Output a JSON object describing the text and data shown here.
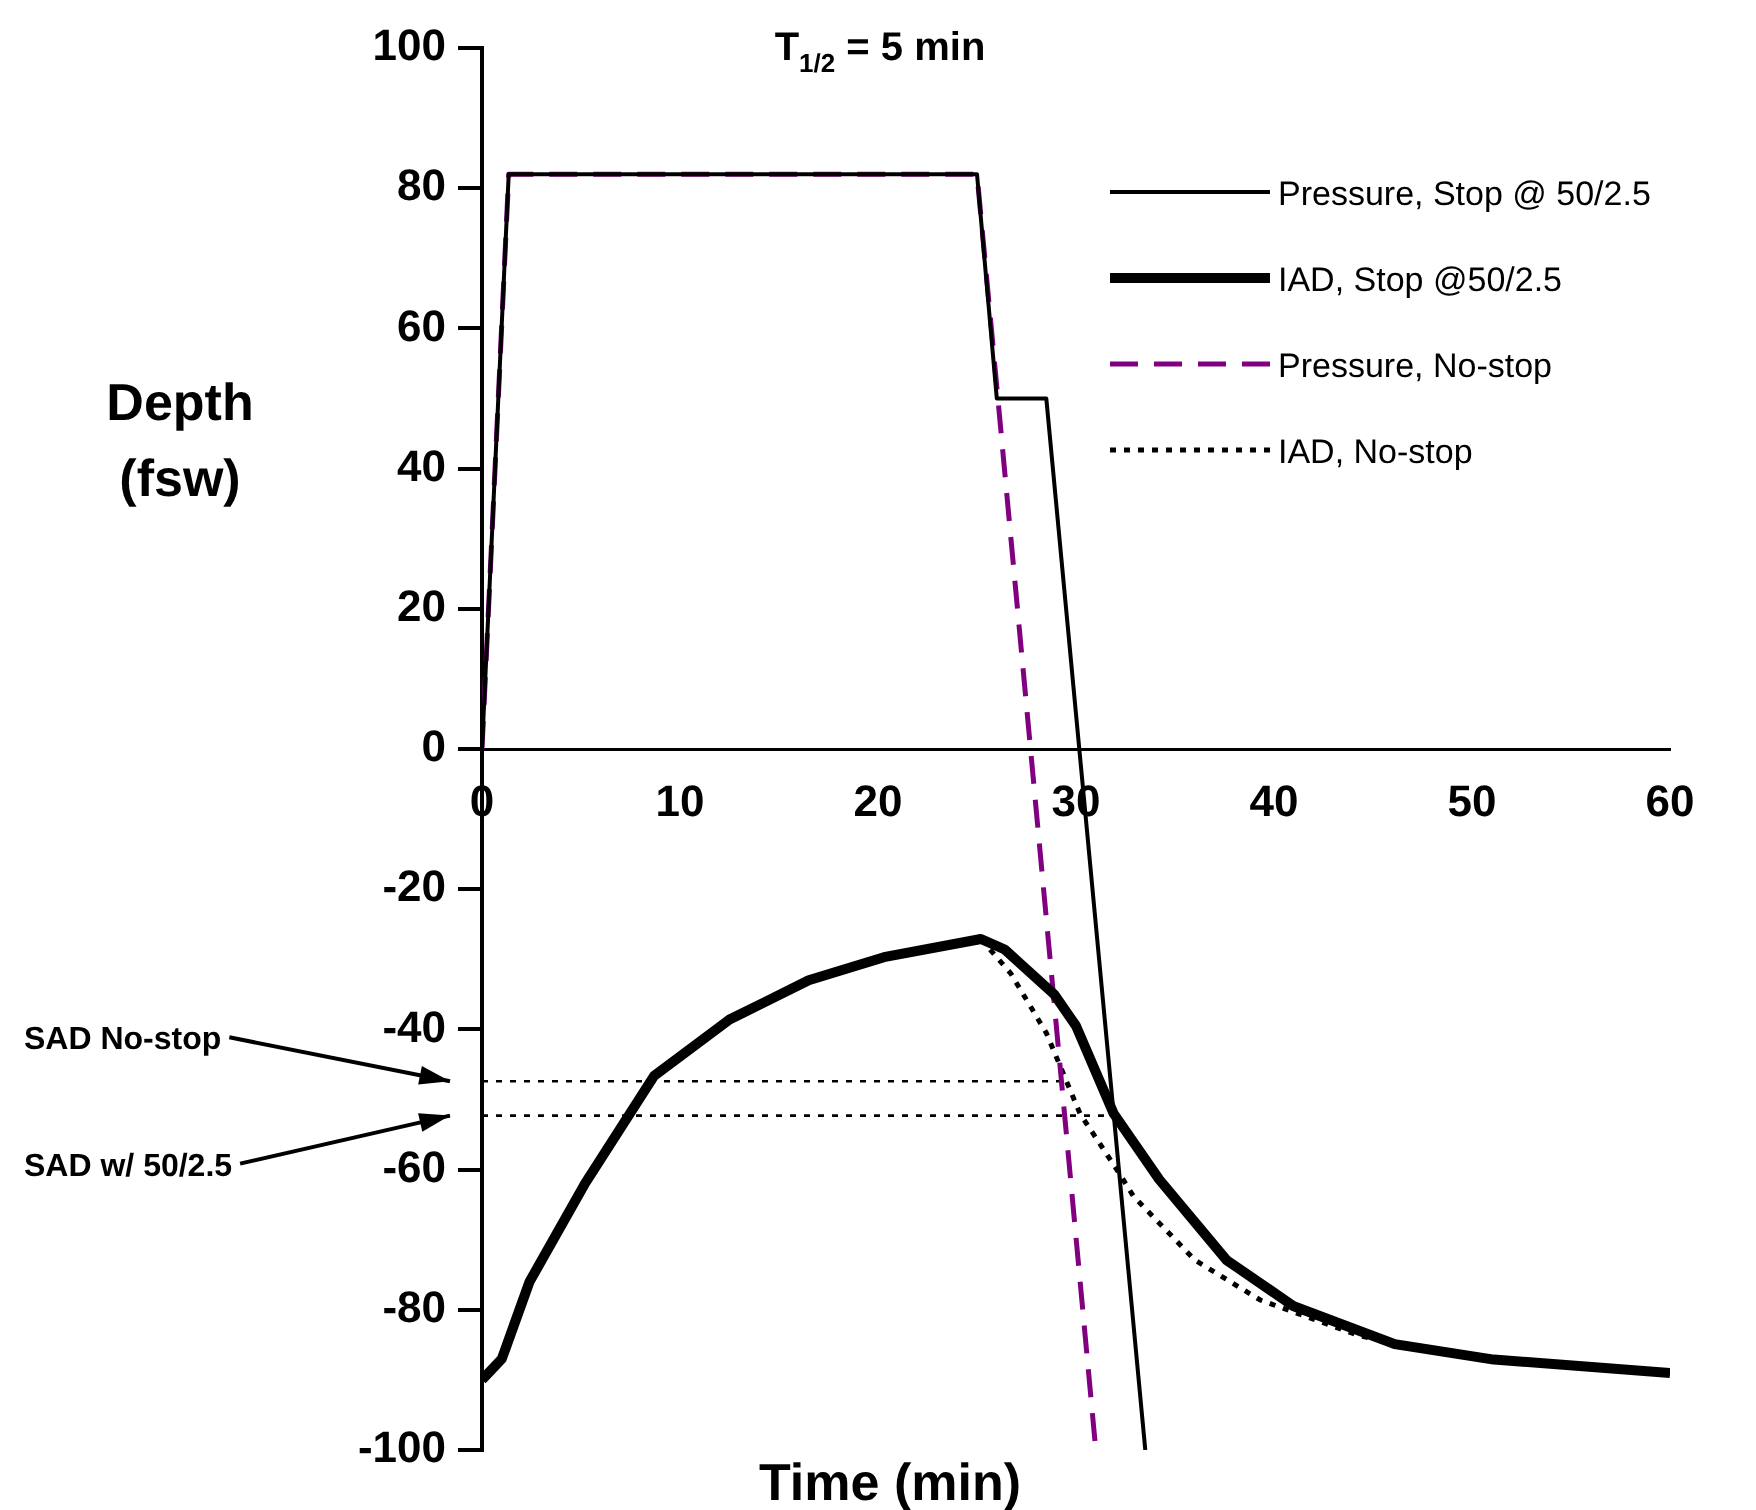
{
  "chart_data": {
    "type": "line",
    "title": "T$_{1/2}$ = 5 min",
    "xlabel": "Time (min)",
    "ylabel": "Depth (fsw)",
    "xlim": [
      0,
      60
    ],
    "xticks": [
      0,
      10,
      20,
      30,
      40,
      50,
      60
    ],
    "ylim": [
      -100,
      100
    ],
    "yticks": [
      -100,
      -80,
      -60,
      -40,
      -20,
      0,
      20,
      40,
      60,
      80,
      100
    ],
    "grid": false,
    "legend": "top right",
    "marker": "none",
    "series": [
      {
        "name": "Pressure, Stop @ 50/2.5",
        "color": "#000000",
        "line_style": "solid",
        "x": [
          0,
          1.35,
          25,
          26,
          28.5,
          33.5
        ],
        "values": [
          0,
          82,
          82,
          50,
          50,
          -100
        ]
      },
      {
        "name": "IAD, Stop @50/2.5",
        "color": "#000000",
        "line_style": "solid",
        "x": [
          0,
          1,
          2.4,
          5.2,
          8.7,
          12.5,
          16.5,
          20.3,
          25.2,
          26.4,
          28.9,
          30,
          31.9,
          34.2,
          37.6,
          41,
          46.1,
          51.1,
          60
        ],
        "values": [
          -90,
          -87,
          -76,
          -62,
          -46.6,
          -38.6,
          -33,
          -29.7,
          -27.1,
          -28.6,
          -35,
          -39.5,
          -52,
          -61.4,
          -72.9,
          -79.5,
          -84.9,
          -87.1,
          -89
        ]
      },
      {
        "name": "Pressure, No-stop",
        "color": "#800080",
        "line_style": "dashed",
        "x": [
          0,
          1.35,
          25,
          31
        ],
        "values": [
          0,
          82,
          82,
          -100
        ]
      },
      {
        "name": "IAD, No-stop",
        "color": "#000000",
        "line_style": "dotted",
        "x": [
          25.2,
          26.7,
          28.5,
          30.2,
          32.2,
          32.9,
          36,
          39.3,
          44.3,
          49.4,
          60
        ],
        "values": [
          -27.1,
          -32,
          -40.5,
          -52,
          -60.6,
          -63.8,
          -72.9,
          -78.6,
          -83.7,
          -86.6,
          -89
        ]
      },
      {
        "color": "#000000",
        "line_style": "dotted",
        "x": [
          0,
          29.6
        ],
        "values": [
          -47.4,
          -47.4
        ]
      },
      {
        "color": "#000000",
        "line_style": "dotted",
        "x": [
          0,
          32.3
        ],
        "values": [
          -52.3,
          -52.3
        ]
      }
    ],
    "annotations": [
      "SAD No-stop",
      "SAD w/ 50/2.5"
    ]
  }
}
